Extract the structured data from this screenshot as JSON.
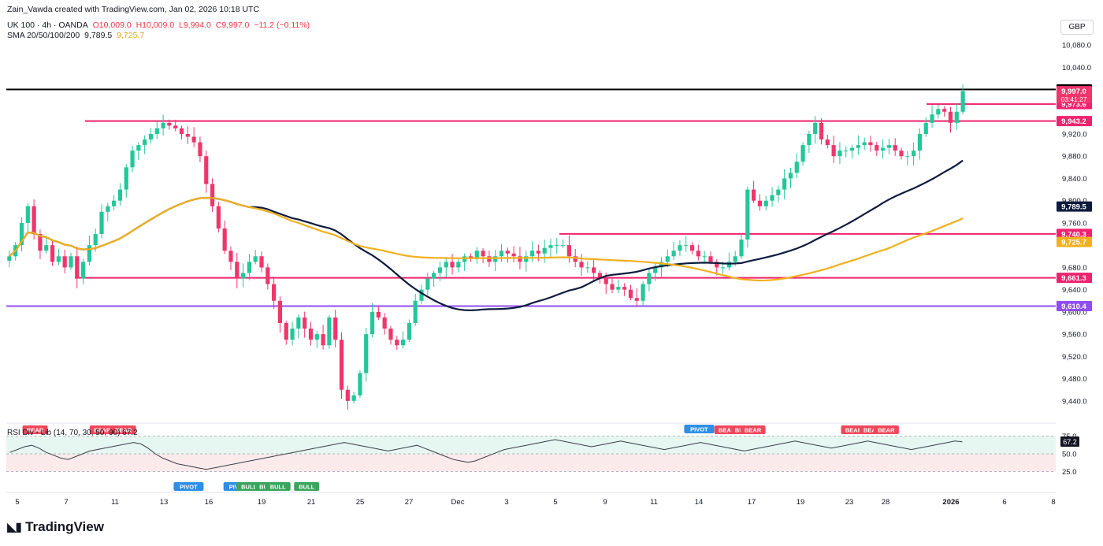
{
  "header": {
    "attribution": "Zain_Vawda created with TradingView.com, Jan 02, 2026 10:18 UTC",
    "symbol": "UK 100 · 4h · OANDA",
    "open": "O10,009.0",
    "high": "H10,009.0",
    "low": "L9,994.0",
    "close": "C9,997.0",
    "change": "−11.2 (−0.11%)",
    "sma_label": "SMA 20/50/100/200",
    "sma_value_1": "9,789.5",
    "sma_value_2": "9,725.7"
  },
  "currency": "GBP",
  "rsi_label": "RSI Div - Lib (14, 70, 30, 50, 90) 67.2",
  "brand": "TradingView",
  "colors": {
    "bull": "#22c79a",
    "bear": "#f0356b",
    "sma_dark": "#0d1b3e",
    "sma_gold": "#f2b01e",
    "level": "#f0226e",
    "level_purple": "#8f4ef0",
    "level_black": "#000000"
  },
  "chart_data": {
    "type": "candlestick",
    "ylim": [
      9410,
      10090
    ],
    "y_ticks": [
      "10,080.0",
      "10,040.0",
      "9,920.0",
      "9,880.0",
      "9,840.0",
      "9,800.0",
      "9,760.0",
      "9,680.0",
      "9,640.0",
      "9,600.0",
      "9,560.0",
      "9,520.0",
      "9,480.0",
      "9,440.0"
    ],
    "y_tick_values": [
      10080,
      10040,
      9920,
      9880,
      9840,
      9800,
      9760,
      9680,
      9640,
      9600,
      9560,
      9520,
      9480,
      9440
    ],
    "x_ticks": [
      "5",
      "7",
      "11",
      "13",
      "16",
      "19",
      "21",
      "25",
      "27",
      "Dec",
      "3",
      "5",
      "9",
      "11",
      "14",
      "17",
      "19",
      "23",
      "28",
      "2026",
      "6",
      "8"
    ],
    "x_tick_bold": "2026",
    "horizontal_levels": [
      {
        "value": 10000.0,
        "label": "10,000.0",
        "color": "#000000"
      },
      {
        "value": 9973.6,
        "label": "9,973.6",
        "color": "#f0226e"
      },
      {
        "value": 9943.2,
        "label": "9,943.2",
        "color": "#f0226e"
      },
      {
        "value": 9740.3,
        "label": "9,740.3",
        "color": "#f0226e"
      },
      {
        "value": 9661.3,
        "label": "9,661.3",
        "color": "#f0226e"
      },
      {
        "value": 9610.4,
        "label": "9,610.4",
        "color": "#8f4ef0"
      }
    ],
    "price_labels": [
      {
        "label": "9,997.0",
        "sub": "03:41:27",
        "value": 9997.0,
        "color": "#f0356b"
      },
      {
        "label": "9,789.5",
        "value": 9789.5,
        "color": "#0d1b3e"
      },
      {
        "label": "9,725.7",
        "value": 9725.7,
        "color": "#f2b01e"
      }
    ],
    "closes": [
      9700,
      9720,
      9760,
      9790,
      9740,
      9710,
      9720,
      9690,
      9700,
      9680,
      9700,
      9660,
      9690,
      9720,
      9740,
      9780,
      9790,
      9800,
      9820,
      9860,
      9890,
      9900,
      9910,
      9920,
      9930,
      9940,
      9935,
      9930,
      9920,
      9915,
      9905,
      9880,
      9830,
      9790,
      9750,
      9710,
      9690,
      9660,
      9670,
      9690,
      9700,
      9680,
      9650,
      9620,
      9580,
      9550,
      9570,
      9590,
      9570,
      9550,
      9560,
      9540,
      9590,
      9550,
      9460,
      9440,
      9450,
      9490,
      9560,
      9600,
      9590,
      9570,
      9550,
      9540,
      9550,
      9580,
      9620,
      9640,
      9660,
      9670,
      9680,
      9690,
      9680,
      9690,
      9700,
      9695,
      9710,
      9700,
      9690,
      9700,
      9710,
      9705,
      9700,
      9690,
      9700,
      9710,
      9705,
      9715,
      9720,
      9720,
      9720,
      9700,
      9690,
      9680,
      9680,
      9670,
      9660,
      9650,
      9640,
      9645,
      9640,
      9625,
      9620,
      9650,
      9670,
      9680,
      9690,
      9700,
      9710,
      9720,
      9720,
      9710,
      9700,
      9700,
      9690,
      9680,
      9680,
      9690,
      9700,
      9730,
      9820,
      9800,
      9790,
      9800,
      9810,
      9820,
      9840,
      9850,
      9870,
      9900,
      9920,
      9940,
      9910,
      9900,
      9880,
      9890,
      9890,
      9895,
      9900,
      9905,
      9900,
      9890,
      9895,
      9900,
      9890,
      9880,
      9880,
      9890,
      9920,
      9940,
      9955,
      9965,
      9960,
      9940,
      9960,
      9997
    ],
    "rsi": [
      52,
      56,
      60,
      62,
      58,
      52,
      48,
      44,
      42,
      46,
      50,
      54,
      56,
      58,
      60,
      62,
      64,
      66,
      64,
      58,
      50,
      44,
      40,
      36,
      34,
      32,
      30,
      28,
      30,
      32,
      34,
      36,
      38,
      40,
      42,
      44,
      46,
      48,
      50,
      52,
      54,
      56,
      58,
      60,
      62,
      64,
      66,
      64,
      62,
      60,
      58,
      56,
      54,
      56,
      58,
      60,
      62,
      58,
      54,
      50,
      46,
      42,
      40,
      38,
      40,
      44,
      48,
      52,
      56,
      58,
      60,
      62,
      64,
      66,
      68,
      70,
      68,
      66,
      64,
      62,
      60,
      62,
      64,
      66,
      68,
      66,
      64,
      62,
      60,
      58,
      56,
      58,
      60,
      62,
      64,
      66,
      64,
      62,
      60,
      58,
      56,
      54,
      56,
      58,
      60,
      62,
      64,
      66,
      68,
      66,
      64,
      62,
      60,
      58,
      60,
      62,
      64,
      66,
      68,
      66,
      64,
      62,
      60,
      58,
      56,
      58,
      60,
      62,
      64,
      66,
      68,
      67
    ],
    "rsi_levels": [
      75.0,
      50.0,
      25.0
    ],
    "rsi_current": "67.2",
    "signals": [
      {
        "label": "BEAR",
        "type": "bear",
        "pos": 0.1
      },
      {
        "label": "BEAR",
        "type": "bear",
        "pos": 0.122
      },
      {
        "label": "BEAR",
        "type": "bear",
        "pos": 0.03
      },
      {
        "label": "PIVOT",
        "type": "pivot",
        "pos": 0.19
      },
      {
        "label": "PIV",
        "type": "pivot",
        "pos": 0.237
      },
      {
        "label": "BULL",
        "type": "bull",
        "pos": 0.253
      },
      {
        "label": "BUL",
        "type": "bull",
        "pos": 0.27
      },
      {
        "label": "BULL",
        "type": "bull",
        "pos": 0.283
      },
      {
        "label": "BULL",
        "type": "bull",
        "pos": 0.313
      },
      {
        "label": "PIVOT",
        "type": "pivot",
        "pos": 0.722
      },
      {
        "label": "BEAR",
        "type": "bear",
        "pos": 0.751
      },
      {
        "label": "BEAR",
        "type": "bear",
        "pos": 0.768
      },
      {
        "label": "BEAR",
        "type": "bear",
        "pos": 0.778
      },
      {
        "label": "BEAR",
        "type": "bear",
        "pos": 0.883
      },
      {
        "label": "BEAR",
        "type": "bear",
        "pos": 0.902
      },
      {
        "label": "BEAR",
        "type": "bear",
        "pos": 0.917
      }
    ]
  }
}
